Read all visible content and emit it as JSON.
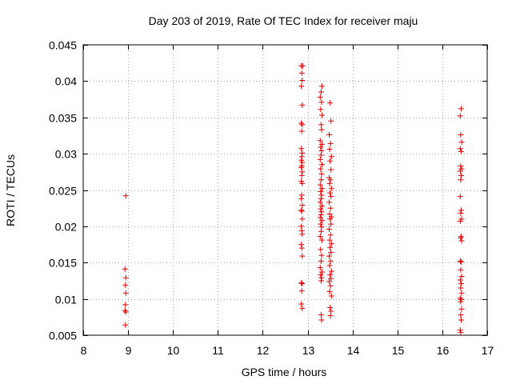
{
  "chart_data": {
    "type": "scatter",
    "title": "Day 203 of 2019, Rate Of TEC Index for receiver maju",
    "xlabel": "GPS time / hours",
    "ylabel": "ROTI / TECUs",
    "xlim": [
      8,
      17
    ],
    "ylim": [
      0.005,
      0.045
    ],
    "xticks": [
      8,
      9,
      10,
      11,
      12,
      13,
      14,
      15,
      16,
      17
    ],
    "xtick_labels": [
      "8",
      "9",
      "10",
      "11",
      "12",
      "13",
      "14",
      "15",
      "16",
      "17"
    ],
    "yticks": [
      0.005,
      0.01,
      0.015,
      0.02,
      0.025,
      0.03,
      0.035,
      0.04,
      0.045
    ],
    "ytick_labels": [
      "0.005",
      "0.01",
      "0.015",
      "0.02",
      "0.025",
      "0.03",
      "0.035",
      "0.04",
      "0.045"
    ],
    "grid": true,
    "marker": "+",
    "color": "#e00000",
    "series": [
      {
        "name": "ROTI",
        "points": [
          [
            8.95,
            0.0242
          ],
          [
            8.93,
            0.0141
          ],
          [
            8.95,
            0.0129
          ],
          [
            8.94,
            0.0119
          ],
          [
            8.95,
            0.0108
          ],
          [
            8.94,
            0.0092
          ],
          [
            8.93,
            0.0084
          ],
          [
            8.95,
            0.0082
          ],
          [
            8.94,
            0.0064
          ],
          [
            12.86,
            0.0421
          ],
          [
            12.89,
            0.0421
          ],
          [
            12.87,
            0.0411
          ],
          [
            12.88,
            0.0401
          ],
          [
            12.86,
            0.0393
          ],
          [
            12.88,
            0.0367
          ],
          [
            12.86,
            0.0342
          ],
          [
            12.88,
            0.034
          ],
          [
            12.87,
            0.0331
          ],
          [
            12.86,
            0.0307
          ],
          [
            12.88,
            0.0301
          ],
          [
            12.87,
            0.0296
          ],
          [
            12.86,
            0.0291
          ],
          [
            12.88,
            0.0288
          ],
          [
            12.87,
            0.0283
          ],
          [
            12.86,
            0.0281
          ],
          [
            12.88,
            0.0275
          ],
          [
            12.87,
            0.027
          ],
          [
            12.86,
            0.0262
          ],
          [
            12.88,
            0.0259
          ],
          [
            12.87,
            0.0243
          ],
          [
            12.86,
            0.0238
          ],
          [
            12.88,
            0.0229
          ],
          [
            12.86,
            0.0222
          ],
          [
            12.87,
            0.0221
          ],
          [
            12.88,
            0.021
          ],
          [
            12.86,
            0.02
          ],
          [
            12.87,
            0.0194
          ],
          [
            12.88,
            0.0189
          ],
          [
            12.86,
            0.0175
          ],
          [
            12.87,
            0.017
          ],
          [
            12.88,
            0.0159
          ],
          [
            12.86,
            0.0122
          ],
          [
            12.88,
            0.0121
          ],
          [
            12.87,
            0.0111
          ],
          [
            12.86,
            0.0093
          ],
          [
            12.88,
            0.0087
          ],
          [
            13.32,
            0.0393
          ],
          [
            13.3,
            0.0385
          ],
          [
            13.28,
            0.0378
          ],
          [
            13.31,
            0.0371
          ],
          [
            13.29,
            0.0361
          ],
          [
            13.32,
            0.0353
          ],
          [
            13.3,
            0.034
          ],
          [
            13.31,
            0.0333
          ],
          [
            13.28,
            0.0318
          ],
          [
            13.32,
            0.0313
          ],
          [
            13.29,
            0.0309
          ],
          [
            13.31,
            0.0304
          ],
          [
            13.3,
            0.0298
          ],
          [
            13.28,
            0.0292
          ],
          [
            13.32,
            0.0285
          ],
          [
            13.29,
            0.0279
          ],
          [
            13.31,
            0.0272
          ],
          [
            13.3,
            0.0264
          ],
          [
            13.28,
            0.0257
          ],
          [
            13.32,
            0.0252
          ],
          [
            13.29,
            0.0248
          ],
          [
            13.31,
            0.0243
          ],
          [
            13.3,
            0.0238
          ],
          [
            13.28,
            0.0233
          ],
          [
            13.32,
            0.0228
          ],
          [
            13.29,
            0.0224
          ],
          [
            13.31,
            0.022
          ],
          [
            13.3,
            0.0216
          ],
          [
            13.28,
            0.0212
          ],
          [
            13.32,
            0.0208
          ],
          [
            13.29,
            0.0203
          ],
          [
            13.31,
            0.0199
          ],
          [
            13.3,
            0.0193
          ],
          [
            13.28,
            0.0186
          ],
          [
            13.32,
            0.0181
          ],
          [
            13.29,
            0.0168
          ],
          [
            13.31,
            0.016
          ],
          [
            13.3,
            0.0152
          ],
          [
            13.28,
            0.0143
          ],
          [
            13.32,
            0.0137
          ],
          [
            13.29,
            0.0133
          ],
          [
            13.31,
            0.0129
          ],
          [
            13.3,
            0.0125
          ],
          [
            13.3,
            0.0078
          ],
          [
            13.31,
            0.0071
          ],
          [
            13.5,
            0.037
          ],
          [
            13.52,
            0.0345
          ],
          [
            13.48,
            0.0326
          ],
          [
            13.51,
            0.0314
          ],
          [
            13.49,
            0.0306
          ],
          [
            13.53,
            0.0296
          ],
          [
            13.5,
            0.029
          ],
          [
            13.52,
            0.0278
          ],
          [
            13.48,
            0.0267
          ],
          [
            13.51,
            0.0264
          ],
          [
            13.49,
            0.0259
          ],
          [
            13.53,
            0.0252
          ],
          [
            13.5,
            0.0246
          ],
          [
            13.52,
            0.0241
          ],
          [
            13.48,
            0.0233
          ],
          [
            13.51,
            0.0225
          ],
          [
            13.49,
            0.0217
          ],
          [
            13.53,
            0.0213
          ],
          [
            13.5,
            0.021
          ],
          [
            13.52,
            0.0203
          ],
          [
            13.48,
            0.0196
          ],
          [
            13.51,
            0.0188
          ],
          [
            13.49,
            0.0181
          ],
          [
            13.53,
            0.0176
          ],
          [
            13.5,
            0.0171
          ],
          [
            13.52,
            0.0164
          ],
          [
            13.48,
            0.0159
          ],
          [
            13.51,
            0.0152
          ],
          [
            13.49,
            0.0146
          ],
          [
            13.53,
            0.0138
          ],
          [
            13.5,
            0.0133
          ],
          [
            13.52,
            0.0128
          ],
          [
            13.48,
            0.0124
          ],
          [
            13.51,
            0.0118
          ],
          [
            13.49,
            0.011
          ],
          [
            13.53,
            0.0104
          ],
          [
            13.5,
            0.0088
          ],
          [
            13.52,
            0.0083
          ],
          [
            13.51,
            0.0077
          ],
          [
            16.42,
            0.0362
          ],
          [
            16.4,
            0.0352
          ],
          [
            16.41,
            0.0326
          ],
          [
            16.43,
            0.0316
          ],
          [
            16.4,
            0.0307
          ],
          [
            16.42,
            0.0303
          ],
          [
            16.41,
            0.0283
          ],
          [
            16.43,
            0.0279
          ],
          [
            16.4,
            0.0276
          ],
          [
            16.42,
            0.027
          ],
          [
            16.41,
            0.0264
          ],
          [
            16.4,
            0.0241
          ],
          [
            16.42,
            0.0222
          ],
          [
            16.41,
            0.0218
          ],
          [
            16.43,
            0.021
          ],
          [
            16.4,
            0.0207
          ],
          [
            16.42,
            0.0186
          ],
          [
            16.41,
            0.0184
          ],
          [
            16.43,
            0.018
          ],
          [
            16.4,
            0.0152
          ],
          [
            16.42,
            0.0151
          ],
          [
            16.41,
            0.014
          ],
          [
            16.43,
            0.0131
          ],
          [
            16.4,
            0.0126
          ],
          [
            16.42,
            0.0121
          ],
          [
            16.41,
            0.0115
          ],
          [
            16.43,
            0.0108
          ],
          [
            16.4,
            0.0101
          ],
          [
            16.42,
            0.0099
          ],
          [
            16.41,
            0.0096
          ],
          [
            16.43,
            0.0086
          ],
          [
            16.41,
            0.0078
          ],
          [
            16.42,
            0.0071
          ],
          [
            16.4,
            0.0057
          ],
          [
            16.41,
            0.0054
          ]
        ]
      }
    ]
  }
}
